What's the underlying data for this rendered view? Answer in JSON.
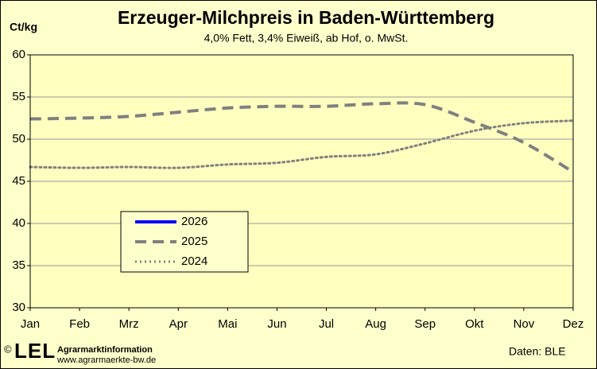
{
  "chart_data": {
    "type": "line",
    "title": "Erzeuger-Milchpreis in Baden-Württemberg",
    "subtitle": "4,0% Fett, 3,4% Eiweiß, ab Hof, o. MwSt.",
    "y_label": "Ct/kg",
    "categories": [
      "Jan",
      "Feb",
      "Mrz",
      "Apr",
      "Mai",
      "Jun",
      "Jul",
      "Aug",
      "Sep",
      "Okt",
      "Nov",
      "Dez"
    ],
    "series": [
      {
        "name": "2026",
        "color": "#0000ff",
        "dash": "solid",
        "values": [
          null,
          null,
          null,
          null,
          null,
          null,
          null,
          null,
          null,
          null,
          null,
          null
        ]
      },
      {
        "name": "2025",
        "color": "#808080",
        "dash": "dashed",
        "values": [
          52.4,
          52.5,
          52.7,
          53.2,
          53.7,
          53.9,
          53.9,
          54.2,
          54.1,
          52.0,
          49.6,
          46.1
        ]
      },
      {
        "name": "2024",
        "color": "#808080",
        "dash": "dotted",
        "values": [
          46.7,
          46.6,
          46.7,
          46.6,
          47.0,
          47.2,
          47.9,
          48.2,
          49.5,
          51.0,
          51.9,
          52.2
        ]
      }
    ],
    "ylim": [
      30,
      60
    ],
    "yticks": [
      30,
      35,
      40,
      45,
      50,
      55,
      60
    ],
    "grid": true,
    "footer": {
      "copyright": "©",
      "logo": "LEL",
      "org": "Agrarmarktinformation",
      "url": "www.agrarmaerkte-bw.de",
      "source": "Daten:  BLE"
    }
  }
}
